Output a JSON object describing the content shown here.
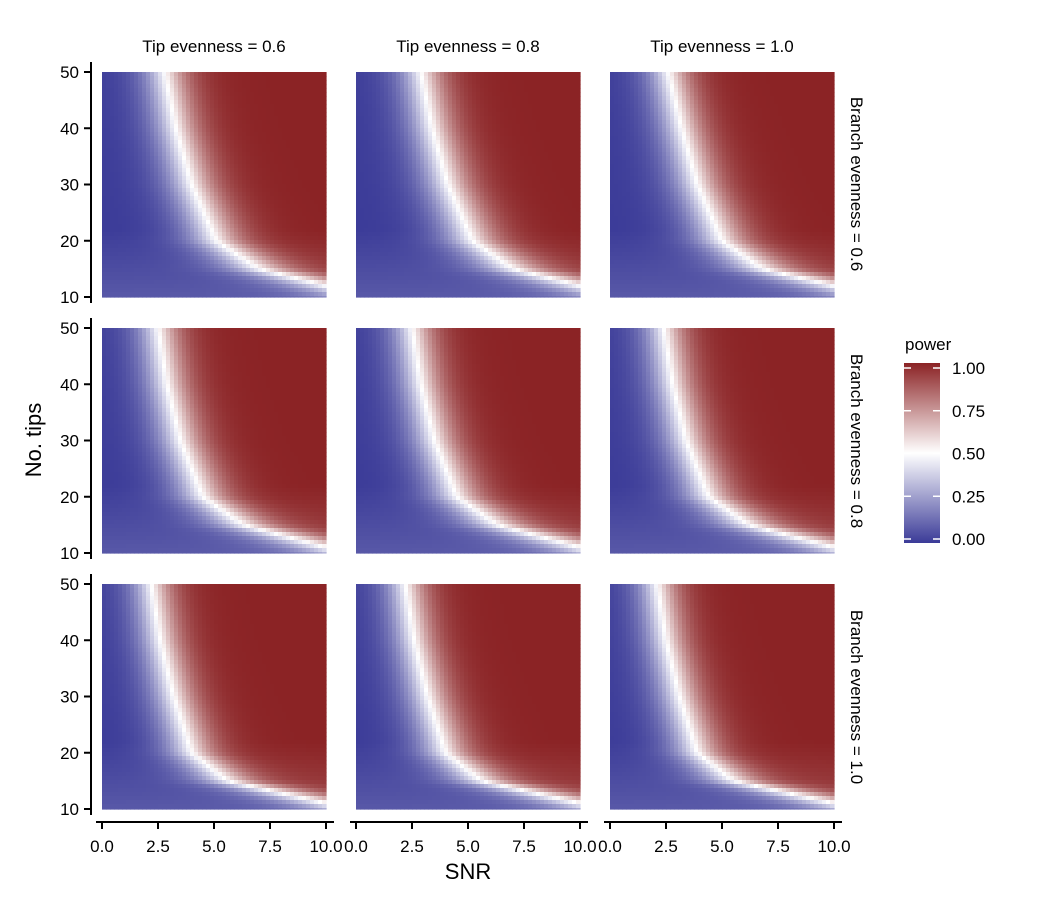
{
  "chart_data": {
    "type": "heatmap",
    "facet_columns": [
      {
        "label": "Tip evenness = 0.6",
        "tip_evenness": 0.6
      },
      {
        "label": "Tip evenness = 0.8",
        "tip_evenness": 0.8
      },
      {
        "label": "Tip evenness = 1.0",
        "tip_evenness": 1.0
      }
    ],
    "facet_rows": [
      {
        "label": "Branch evenness = 0.6",
        "branch_evenness": 0.6
      },
      {
        "label": "Branch evenness = 0.8",
        "branch_evenness": 0.8
      },
      {
        "label": "Branch evenness = 1.0",
        "branch_evenness": 1.0
      }
    ],
    "xlabel": "SNR",
    "ylabel": "No. tips",
    "xlim": [
      0,
      10
    ],
    "ylim": [
      10,
      50
    ],
    "x_ticks": [
      "0.0",
      "2.5",
      "5.0",
      "7.5",
      "10.0"
    ],
    "y_ticks": [
      "10",
      "20",
      "30",
      "40",
      "50"
    ],
    "legend": {
      "title": "power",
      "position": "right",
      "ticks": [
        "1.00",
        "0.75",
        "0.50",
        "0.25",
        "0.00"
      ],
      "low_color": "#3b3b98",
      "mid_color": "#ffffff",
      "high_color": "#8b2325"
    },
    "power_contour_note_snr_at_0_5": [
      {
        "row": 0,
        "col": 0,
        "values": [
          [
            50,
            2.8
          ],
          [
            40,
            3.3
          ],
          [
            30,
            4.0
          ],
          [
            20,
            5.1
          ],
          [
            15,
            7.0
          ],
          [
            12,
            10.0
          ]
        ]
      },
      {
        "row": 0,
        "col": 1,
        "values": [
          [
            50,
            2.9
          ],
          [
            40,
            3.4
          ],
          [
            30,
            4.1
          ],
          [
            20,
            5.2
          ],
          [
            15,
            7.0
          ],
          [
            12,
            10.0
          ]
        ]
      },
      {
        "row": 0,
        "col": 2,
        "values": [
          [
            50,
            2.6
          ],
          [
            40,
            3.2
          ],
          [
            30,
            3.9
          ],
          [
            20,
            5.0
          ],
          [
            15,
            6.8
          ],
          [
            12,
            10.0
          ]
        ]
      },
      {
        "row": 1,
        "col": 0,
        "values": [
          [
            50,
            2.5
          ],
          [
            40,
            2.9
          ],
          [
            30,
            3.5
          ],
          [
            20,
            4.5
          ],
          [
            15,
            6.3
          ],
          [
            11,
            10.0
          ]
        ]
      },
      {
        "row": 1,
        "col": 1,
        "values": [
          [
            50,
            2.5
          ],
          [
            40,
            2.9
          ],
          [
            30,
            3.5
          ],
          [
            20,
            4.5
          ],
          [
            15,
            6.3
          ],
          [
            11,
            10.0
          ]
        ]
      },
      {
        "row": 1,
        "col": 2,
        "values": [
          [
            50,
            2.4
          ],
          [
            40,
            2.8
          ],
          [
            30,
            3.4
          ],
          [
            20,
            4.4
          ],
          [
            15,
            6.2
          ],
          [
            11,
            10.0
          ]
        ]
      },
      {
        "row": 2,
        "col": 0,
        "values": [
          [
            50,
            2.2
          ],
          [
            40,
            2.6
          ],
          [
            30,
            3.2
          ],
          [
            20,
            4.0
          ],
          [
            15,
            5.6
          ],
          [
            11,
            10.0
          ]
        ]
      },
      {
        "row": 2,
        "col": 1,
        "values": [
          [
            50,
            2.2
          ],
          [
            40,
            2.6
          ],
          [
            30,
            3.2
          ],
          [
            20,
            4.0
          ],
          [
            15,
            5.6
          ],
          [
            11,
            10.0
          ]
        ]
      },
      {
        "row": 2,
        "col": 2,
        "values": [
          [
            50,
            2.1
          ],
          [
            40,
            2.5
          ],
          [
            30,
            3.1
          ],
          [
            20,
            3.9
          ],
          [
            15,
            5.5
          ],
          [
            11,
            10.0
          ]
        ]
      }
    ]
  }
}
